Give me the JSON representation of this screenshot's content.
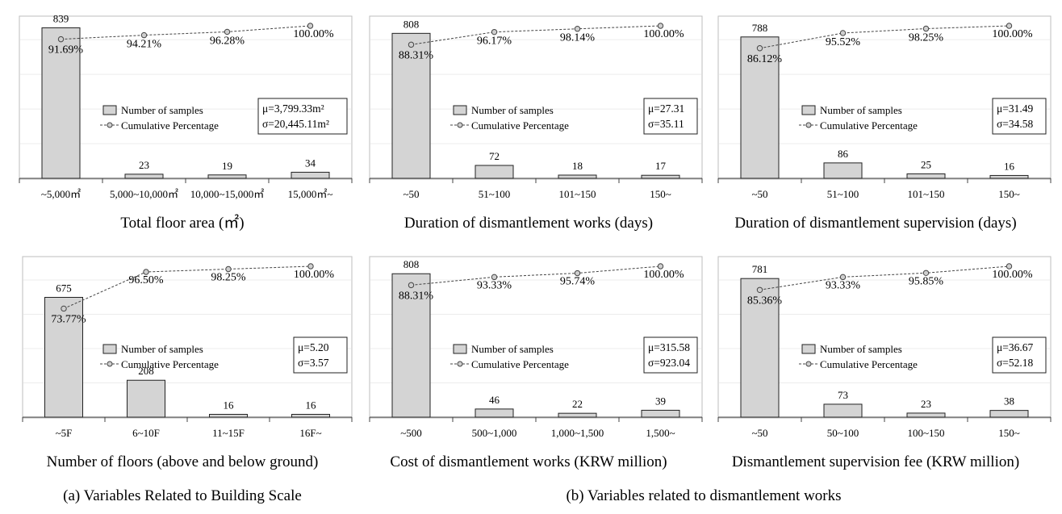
{
  "captions": {
    "a": "(a) Variables Related to Building Scale",
    "b": "(b) Variables related to dismantlement works"
  },
  "legend": {
    "bar_label": "Number of samples",
    "line_label": "Cumulative Percentage"
  },
  "colors": {
    "bar_fill": "#d4d4d4",
    "line": "#444444",
    "marker": "#cfcfcf"
  },
  "chart_data": [
    {
      "type": "bar",
      "title": "Total floor area (㎡)",
      "categories": [
        "~5,000㎡",
        "5,000~10,000㎡",
        "10,000~15,000㎡",
        "15,000㎡~"
      ],
      "series": [
        {
          "name": "Number of samples",
          "values": [
            839,
            23,
            19,
            34
          ]
        },
        {
          "name": "Cumulative Percentage",
          "values": [
            91.69,
            94.21,
            96.28,
            100.0
          ],
          "labels": [
            "91.69%",
            "94.21%",
            "96.28%",
            "100.00%"
          ]
        }
      ],
      "stats": {
        "mu": "μ=3,799.33m²",
        "sigma": "σ=20,445.11m²"
      },
      "ylim": [
        0,
        850
      ],
      "grid": true,
      "legend_position": "bottom-right"
    },
    {
      "type": "bar",
      "title": "Duration of dismantlement works (days)",
      "categories": [
        "~50",
        "51~100",
        "101~150",
        "150~"
      ],
      "series": [
        {
          "name": "Number of samples",
          "values": [
            808,
            72,
            18,
            17
          ]
        },
        {
          "name": "Cumulative Percentage",
          "values": [
            88.31,
            96.17,
            98.14,
            100.0
          ],
          "labels": [
            "88.31%",
            "96.17%",
            "98.14%",
            "100.00%"
          ]
        }
      ],
      "stats": {
        "mu": "μ=27.31",
        "sigma": "σ=35.11"
      },
      "ylim": [
        0,
        850
      ],
      "grid": true,
      "legend_position": "bottom-right"
    },
    {
      "type": "bar",
      "title": "Duration of dismantlement supervision (days)",
      "categories": [
        "~50",
        "51~100",
        "101~150",
        "150~"
      ],
      "series": [
        {
          "name": "Number of samples",
          "values": [
            788,
            86,
            25,
            16
          ]
        },
        {
          "name": "Cumulative Percentage",
          "values": [
            86.12,
            95.52,
            98.25,
            100.0
          ],
          "labels": [
            "86.12%",
            "95.52%",
            "98.25%",
            "100.00%"
          ]
        }
      ],
      "stats": {
        "mu": "μ=31.49",
        "sigma": "σ=34.58"
      },
      "ylim": [
        0,
        850
      ],
      "grid": true,
      "legend_position": "bottom-right"
    },
    {
      "type": "bar",
      "title": "Number of floors (above and below ground)",
      "categories": [
        "~5F",
        "6~10F",
        "11~15F",
        "16F~"
      ],
      "series": [
        {
          "name": "Number of samples",
          "values": [
            675,
            208,
            16,
            16
          ]
        },
        {
          "name": "Cumulative Percentage",
          "values": [
            73.77,
            96.5,
            98.25,
            100.0
          ],
          "labels": [
            "73.77%",
            "96.50%",
            "98.25%",
            "100.00%"
          ]
        }
      ],
      "stats": {
        "mu": "μ=5.20",
        "sigma": "σ=3.57"
      },
      "ylim": [
        0,
        850
      ],
      "grid": true,
      "legend_position": "bottom-right"
    },
    {
      "type": "bar",
      "title": "Cost of dismantlement works (KRW million)",
      "categories": [
        "~500",
        "500~1,000",
        "1,000~1,500",
        "1,500~"
      ],
      "series": [
        {
          "name": "Number of samples",
          "values": [
            808,
            46,
            22,
            39
          ]
        },
        {
          "name": "Cumulative Percentage",
          "values": [
            88.31,
            93.33,
            95.74,
            100.0
          ],
          "labels": [
            "88.31%",
            "93.33%",
            "95.74%",
            "100.00%"
          ]
        }
      ],
      "stats": {
        "mu": "μ=315.58",
        "sigma": "σ=923.04"
      },
      "ylim": [
        0,
        850
      ],
      "grid": true,
      "legend_position": "bottom-right"
    },
    {
      "type": "bar",
      "title": "Dismantlement supervision fee (KRW million)",
      "categories": [
        "~50",
        "50~100",
        "100~150",
        "150~"
      ],
      "series": [
        {
          "name": "Number of samples",
          "values": [
            781,
            73,
            23,
            38
          ]
        },
        {
          "name": "Cumulative Percentage",
          "values": [
            85.36,
            93.33,
            95.85,
            100.0
          ],
          "labels": [
            "85.36%",
            "93.33%",
            "95.85%",
            "100.00%"
          ]
        }
      ],
      "stats": {
        "mu": "μ=36.67",
        "sigma": "σ=52.18"
      },
      "ylim": [
        0,
        850
      ],
      "grid": true,
      "legend_position": "bottom-right"
    }
  ]
}
